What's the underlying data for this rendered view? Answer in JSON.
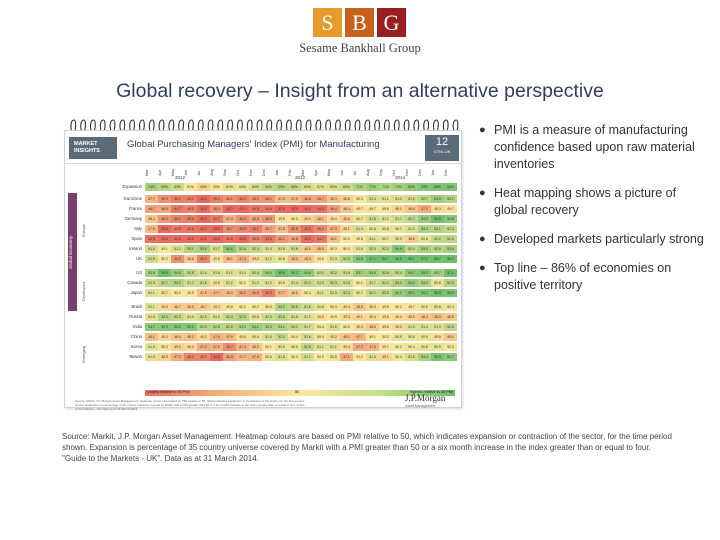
{
  "logo": {
    "letters": [
      "S",
      "B",
      "G"
    ],
    "colors": [
      "#e89a2c",
      "#c8611c",
      "#9a1f22"
    ],
    "name": "Sesame Bankhall Group"
  },
  "title": "Global recovery – Insight from an alternative perspective",
  "figure": {
    "header_box": "MARKET INSIGHTS",
    "chart_title": "Global Purchasing Managers' Index (PMI) for Manufacturing",
    "page_number": "12",
    "page_tag": "GTM–UK",
    "region_label": "Global Economy",
    "years": [
      "2012",
      "2013",
      "2014"
    ],
    "months": [
      "Mar",
      "Apr",
      "May",
      "Jun",
      "Jul",
      "Aug",
      "Sep",
      "Oct",
      "Nov",
      "Dec",
      "Jan",
      "Feb",
      "Mar",
      "Apr",
      "May",
      "Jun",
      "Jul",
      "Aug",
      "Sep",
      "Oct",
      "Nov",
      "Dec",
      "Jan",
      "Feb"
    ],
    "groups": [
      "Europe",
      "Developed",
      "Emerging"
    ],
    "rows": [
      {
        "label": "Expansion",
        "values": [
          "74%",
          "69%",
          "63%",
          "51%",
          "43%",
          "49%",
          "57%",
          "54%",
          "60%",
          "66%",
          "69%",
          "66%",
          "60%",
          "57%",
          "60%",
          "63%",
          "71%",
          "77%",
          "71%",
          "74%",
          "80%",
          "83%",
          "86%",
          "86%"
        ]
      },
      {
        "label": "Eurozone",
        "values": [
          "47.7",
          "45.9",
          "45.1",
          "45.1",
          "44.0",
          "45.1",
          "46.1",
          "45.4",
          "46.2",
          "46.1",
          "47.9",
          "47.9",
          "46.8",
          "46.7",
          "48.3",
          "48.8",
          "50.3",
          "51.4",
          "51.1",
          "51.3",
          "51.6",
          "52.7",
          "54.0",
          "53.2"
        ]
      },
      {
        "label": "France",
        "values": [
          "46.7",
          "46.9",
          "44.7",
          "45.2",
          "43.6",
          "46.0",
          "42.7",
          "43.7",
          "44.5",
          "44.6",
          "42.9",
          "43.9",
          "44.0",
          "44.4",
          "46.4",
          "48.4",
          "49.7",
          "49.7",
          "49.8",
          "49.1",
          "48.4",
          "47.0",
          "49.3",
          "49.7"
        ]
      },
      {
        "label": "Germany",
        "values": [
          "48.4",
          "46.2",
          "45.2",
          "45.0",
          "43.0",
          "44.7",
          "47.4",
          "46.0",
          "46.8",
          "46.0",
          "49.8",
          "50.3",
          "49.0",
          "48.1",
          "49.4",
          "48.6",
          "50.7",
          "51.8",
          "51.1",
          "51.7",
          "52.7",
          "54.3",
          "56.5",
          "54.8"
        ]
      },
      {
        "label": "Italy",
        "values": [
          "47.9",
          "43.8",
          "44.8",
          "44.6",
          "44.3",
          "43.6",
          "45.7",
          "45.5",
          "45.1",
          "46.7",
          "47.8",
          "45.8",
          "44.5",
          "45.5",
          "47.3",
          "49.1",
          "51.3",
          "50.8",
          "50.8",
          "50.7",
          "51.4",
          "53.3",
          "53.1",
          "52.3"
        ]
      },
      {
        "label": "Spain",
        "values": [
          "44.5",
          "43.5",
          "42.0",
          "41.1",
          "41.5",
          "44.0",
          "44.5",
          "43.5",
          "45.3",
          "44.6",
          "46.1",
          "46.8",
          "44.2",
          "44.7",
          "48.1",
          "50.0",
          "49.8",
          "51.1",
          "50.7",
          "50.9",
          "48.6",
          "50.8",
          "52.2",
          "52.5"
        ]
      },
      {
        "label": "Ireland",
        "values": [
          "51.5",
          "50.1",
          "51.2",
          "53.1",
          "53.5",
          "51.7",
          "54.6",
          "52.8",
          "52.4",
          "51.4",
          "51.5",
          "51.8",
          "48.6",
          "48.0",
          "50.3",
          "50.3",
          "51.0",
          "52.0",
          "52.2",
          "54.9",
          "52.4",
          "53.5",
          "52.8",
          "53.5"
        ]
      },
      {
        "label": "UK",
        "values": [
          "51.9",
          "50.2",
          "45.9",
          "48.6",
          "45.4",
          "49.6",
          "48.1",
          "47.3",
          "49.2",
          "51.2",
          "50.8",
          "48.0",
          "48.3",
          "49.8",
          "51.3",
          "52.9",
          "54.8",
          "57.1",
          "56.7",
          "56.5",
          "58.1",
          "57.2",
          "56.7",
          "56.2"
        ]
      },
      {
        "label": "US",
        "values": [
          "53.6",
          "55.9",
          "54.0",
          "52.5",
          "51.5",
          "51.5",
          "51.1",
          "51.0",
          "52.4",
          "54.0",
          "55.8",
          "55.2",
          "54.6",
          "52.0",
          "52.2",
          "51.9",
          "53.7",
          "53.9",
          "52.8",
          "52.4",
          "54.7",
          "55.0",
          "53.7",
          "57.1"
        ]
      },
      {
        "label": "Canada",
        "values": [
          "51.9",
          "52.7",
          "53.2",
          "51.7",
          "51.8",
          "49.5",
          "51.2",
          "50.2",
          "51.2",
          "51.2",
          "50.5",
          "51.4",
          "52.2",
          "51.9",
          "52.3",
          "51.8",
          "50.1",
          "51.7",
          "52.2",
          "53.2",
          "54.2",
          "53.3",
          "50.8",
          "52.9"
        ]
      },
      {
        "label": "Japan",
        "values": [
          "51.1",
          "50.7",
          "50.0",
          "49.9",
          "47.9",
          "47.7",
          "48.0",
          "46.9",
          "46.5",
          "45.0",
          "47.7",
          "48.5",
          "50.4",
          "51.1",
          "51.5",
          "52.3",
          "50.7",
          "52.2",
          "52.5",
          "54.2",
          "55.1",
          "55.2",
          "56.6",
          "55.5"
        ]
      },
      {
        "label": "Brazil",
        "values": [
          "51.1",
          "49.3",
          "48.7",
          "48.5",
          "48.7",
          "49.3",
          "49.8",
          "50.2",
          "50.2",
          "50.5",
          "53.2",
          "52.5",
          "51.8",
          "50.8",
          "50.4",
          "49.4",
          "48.5",
          "49.4",
          "49.9",
          "50.2",
          "49.7",
          "50.5",
          "50.8",
          "50.4"
        ]
      },
      {
        "label": "Russia",
        "values": [
          "51.0",
          "53.0",
          "52.3",
          "51.0",
          "52.0",
          "51.0",
          "52.4",
          "52.9",
          "50.8",
          "52.0",
          "52.6",
          "51.5",
          "51.2",
          "49.5",
          "49.9",
          "49.3",
          "49.1",
          "49.4",
          "49.6",
          "49.4",
          "48.9",
          "48.3",
          "48.0",
          "48.5"
        ]
      },
      {
        "label": "India",
        "values": [
          "54.7",
          "54.9",
          "55.0",
          "55.0",
          "52.9",
          "52.8",
          "52.8",
          "53.3",
          "54.1",
          "53.3",
          "53.1",
          "52.2",
          "51.7",
          "50.4",
          "51.5",
          "50.2",
          "49.3",
          "48.5",
          "49.6",
          "49.3",
          "51.3",
          "51.4",
          "51.3",
          "52.5"
        ]
      },
      {
        "label": "China",
        "values": [
          "48.1",
          "49.3",
          "48.4",
          "48.2",
          "49.3",
          "47.6",
          "47.9",
          "49.5",
          "50.5",
          "51.5",
          "52.3",
          "50.4",
          "51.6",
          "50.4",
          "49.2",
          "48.2",
          "47.7",
          "50.1",
          "50.2",
          "50.9",
          "50.8",
          "50.5",
          "49.5",
          "48.5"
        ]
      },
      {
        "label": "Korea",
        "values": [
          "51.0",
          "50.3",
          "49.0",
          "49.4",
          "47.2",
          "47.5",
          "45.7",
          "47.4",
          "48.2",
          "50.1",
          "50.9",
          "50.5",
          "52.6",
          "51.1",
          "51.1",
          "49.4",
          "47.2",
          "47.5",
          "49.7",
          "50.2",
          "50.4",
          "50.8",
          "50.9",
          "50.3"
        ]
      },
      {
        "label": "Taiwan",
        "values": [
          "51.0",
          "48.9",
          "47.3",
          "45.3",
          "45.4",
          "44.0",
          "46.8",
          "47.7",
          "47.4",
          "50.6",
          "51.5",
          "50.3",
          "51.7",
          "50.0",
          "50.5",
          "47.1",
          "50.0",
          "51.0",
          "49.1",
          "50.4",
          "51.6",
          "53.4",
          "55.5",
          "54.7"
        ]
      }
    ],
    "legend_low": "Lowest relative to 50 PMI",
    "legend_mid": "50",
    "legend_high": "Highest relative to 50 PMI",
    "fine_print": "Source: Markit, J.P. Morgan Asset Management. Heatmap colours are based on PMI relative to 50, which indicates expansion or contraction of the sector, for the time period shown. Expansion is percentage of 35 country universe covered by Markit with a PMI greater than 50 or a six month increase in the index greater than or equal to four. Guide to the Markets - UK. Data as at 31 March 2014.",
    "jpm_logo": "J.P.Morgan",
    "jpm_sub": "Asset Management"
  },
  "bullets": [
    "PMI is a measure of manufacturing confidence based upon raw material inventories",
    "Heat mapping shows a picture of global recovery",
    "Developed markets particularly strong",
    "Top line – 86% of economies on positive territory"
  ],
  "source": "Source: Markit, J.P. Morgan Asset Management. Heatmap colours are based on PMI relative to 50, which indicates expansion or contraction of the sector, for the time period shown. Expansion is percentage of 35 country universe covered by Markit with a PMI greater than 50 or a six month increase in the index greater than or equal to four. \"Guide to the Markets - UK\". Data as at 31 March 2014."
}
